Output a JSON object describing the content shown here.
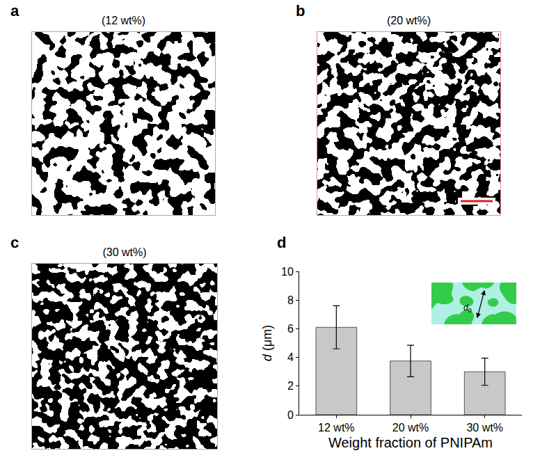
{
  "panels": [
    {
      "letter": "a",
      "title": "(12 wt%)"
    },
    {
      "letter": "b",
      "title": "(20 wt%)"
    },
    {
      "letter": "c",
      "title": "(30 wt%)"
    }
  ],
  "chart_data": {
    "letter": "d",
    "type": "bar",
    "categories": [
      "12 wt%",
      "20 wt%",
      "30 wt%"
    ],
    "values": [
      6.1,
      3.75,
      3.0
    ],
    "errors": [
      1.5,
      1.1,
      0.95
    ],
    "color": "#c8c8c8",
    "x_label": "Weight fraction of PNIPAm",
    "y_label": "d (μm)",
    "ylim": [
      0,
      10
    ],
    "yticks": [
      0,
      2,
      4,
      6,
      8,
      10
    ],
    "grid": false,
    "inset_label": "d0"
  }
}
